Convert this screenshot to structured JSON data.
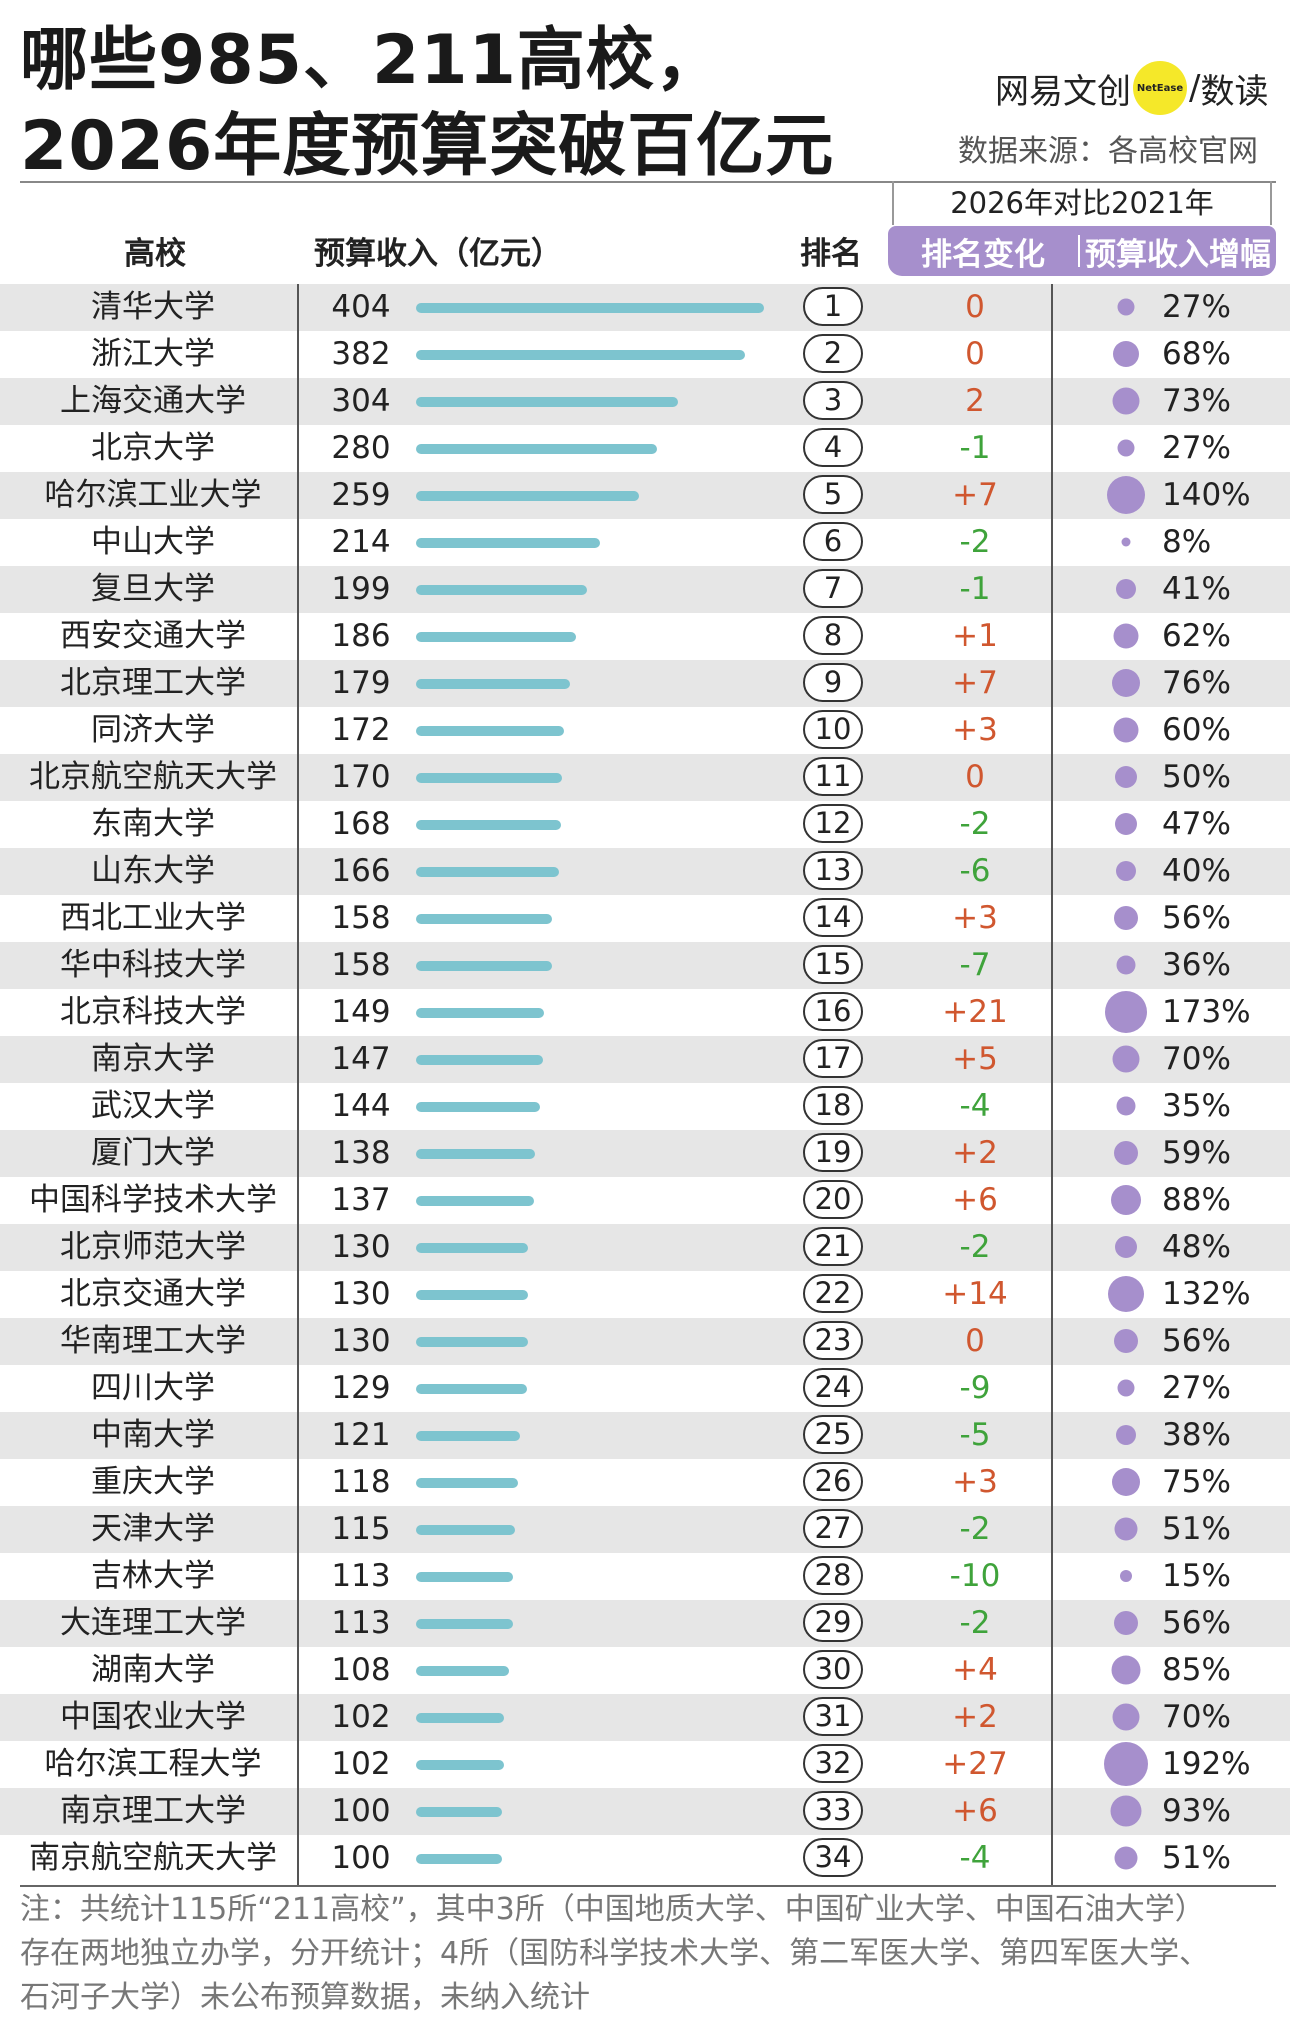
{
  "header": {
    "title_line1": "哪些985、211高校，",
    "title_line2": "2026年度预算突破百亿元",
    "brand_left": "网易文创",
    "brand_dot": "NetEase",
    "brand_slash": "/",
    "brand_right": "数读",
    "source": "数据来源：各高校官网"
  },
  "columns": {
    "school": "高校",
    "budget": "预算收入（亿元）",
    "rank": "排名",
    "compare_title": "2026年对比2021年",
    "rank_change": "排名变化",
    "budget_growth": "预算收入增幅"
  },
  "colors": {
    "bar": "#7dc4cf",
    "accent_purple": "#a68fcc",
    "positive_change": "#d0572f",
    "negative_change": "#3fa33b",
    "row_shade": "#e6e6e6"
  },
  "chart_data": {
    "type": "table",
    "value_max": 404,
    "rows": [
      {
        "school": "清华大学",
        "budget": 404,
        "rank": 1,
        "change": "0",
        "growth": "27%",
        "growth_value": 27
      },
      {
        "school": "浙江大学",
        "budget": 382,
        "rank": 2,
        "change": "0",
        "growth": "68%",
        "growth_value": 68
      },
      {
        "school": "上海交通大学",
        "budget": 304,
        "rank": 3,
        "change": "2",
        "growth": "73%",
        "growth_value": 73
      },
      {
        "school": "北京大学",
        "budget": 280,
        "rank": 4,
        "change": "-1",
        "growth": "27%",
        "growth_value": 27
      },
      {
        "school": "哈尔滨工业大学",
        "budget": 259,
        "rank": 5,
        "change": "+7",
        "growth": "140%",
        "growth_value": 140
      },
      {
        "school": "中山大学",
        "budget": 214,
        "rank": 6,
        "change": "-2",
        "growth": "8%",
        "growth_value": 8
      },
      {
        "school": "复旦大学",
        "budget": 199,
        "rank": 7,
        "change": "-1",
        "growth": "41%",
        "growth_value": 41
      },
      {
        "school": "西安交通大学",
        "budget": 186,
        "rank": 8,
        "change": "+1",
        "growth": "62%",
        "growth_value": 62
      },
      {
        "school": "北京理工大学",
        "budget": 179,
        "rank": 9,
        "change": "+7",
        "growth": "76%",
        "growth_value": 76
      },
      {
        "school": "同济大学",
        "budget": 172,
        "rank": 10,
        "change": "+3",
        "growth": "60%",
        "growth_value": 60
      },
      {
        "school": "北京航空航天大学",
        "budget": 170,
        "rank": 11,
        "change": "0",
        "growth": "50%",
        "growth_value": 50
      },
      {
        "school": "东南大学",
        "budget": 168,
        "rank": 12,
        "change": "-2",
        "growth": "47%",
        "growth_value": 47
      },
      {
        "school": "山东大学",
        "budget": 166,
        "rank": 13,
        "change": "-6",
        "growth": "40%",
        "growth_value": 40
      },
      {
        "school": "西北工业大学",
        "budget": 158,
        "rank": 14,
        "change": "+3",
        "growth": "56%",
        "growth_value": 56
      },
      {
        "school": "华中科技大学",
        "budget": 158,
        "rank": 15,
        "change": "-7",
        "growth": "36%",
        "growth_value": 36
      },
      {
        "school": "北京科技大学",
        "budget": 149,
        "rank": 16,
        "change": "+21",
        "growth": "173%",
        "growth_value": 173
      },
      {
        "school": "南京大学",
        "budget": 147,
        "rank": 17,
        "change": "+5",
        "growth": "70%",
        "growth_value": 70
      },
      {
        "school": "武汉大学",
        "budget": 144,
        "rank": 18,
        "change": "-4",
        "growth": "35%",
        "growth_value": 35
      },
      {
        "school": "厦门大学",
        "budget": 138,
        "rank": 19,
        "change": "+2",
        "growth": "59%",
        "growth_value": 59
      },
      {
        "school": "中国科学技术大学",
        "budget": 137,
        "rank": 20,
        "change": "+6",
        "growth": "88%",
        "growth_value": 88
      },
      {
        "school": "北京师范大学",
        "budget": 130,
        "rank": 21,
        "change": "-2",
        "growth": "48%",
        "growth_value": 48
      },
      {
        "school": "北京交通大学",
        "budget": 130,
        "rank": 22,
        "change": "+14",
        "growth": "132%",
        "growth_value": 132
      },
      {
        "school": "华南理工大学",
        "budget": 130,
        "rank": 23,
        "change": "0",
        "growth": "56%",
        "growth_value": 56
      },
      {
        "school": "四川大学",
        "budget": 129,
        "rank": 24,
        "change": "-9",
        "growth": "27%",
        "growth_value": 27
      },
      {
        "school": "中南大学",
        "budget": 121,
        "rank": 25,
        "change": "-5",
        "growth": "38%",
        "growth_value": 38
      },
      {
        "school": "重庆大学",
        "budget": 118,
        "rank": 26,
        "change": "+3",
        "growth": "75%",
        "growth_value": 75
      },
      {
        "school": "天津大学",
        "budget": 115,
        "rank": 27,
        "change": "-2",
        "growth": "51%",
        "growth_value": 51
      },
      {
        "school": "吉林大学",
        "budget": 113,
        "rank": 28,
        "change": "-10",
        "growth": "15%",
        "growth_value": 15
      },
      {
        "school": "大连理工大学",
        "budget": 113,
        "rank": 29,
        "change": "-2",
        "growth": "56%",
        "growth_value": 56
      },
      {
        "school": "湖南大学",
        "budget": 108,
        "rank": 30,
        "change": "+4",
        "growth": "85%",
        "growth_value": 85
      },
      {
        "school": "中国农业大学",
        "budget": 102,
        "rank": 31,
        "change": "+2",
        "growth": "70%",
        "growth_value": 70
      },
      {
        "school": "哈尔滨工程大学",
        "budget": 102,
        "rank": 32,
        "change": "+27",
        "growth": "192%",
        "growth_value": 192
      },
      {
        "school": "南京理工大学",
        "budget": 100,
        "rank": 33,
        "change": "+6",
        "growth": "93%",
        "growth_value": 93
      },
      {
        "school": "南京航空航天大学",
        "budget": 100,
        "rank": 34,
        "change": "-4",
        "growth": "51%",
        "growth_value": 51
      }
    ]
  },
  "footer": {
    "note_line1": "注：共统计115所“211高校”，其中3所（中国地质大学、中国矿业大学、中国石油大学）",
    "note_line2": "存在两地独立办学，分开统计；4所（国防科学技术大学、第二军医大学、第四军医大学、",
    "note_line3": "石河子大学）未公布预算数据，未纳入统计"
  }
}
